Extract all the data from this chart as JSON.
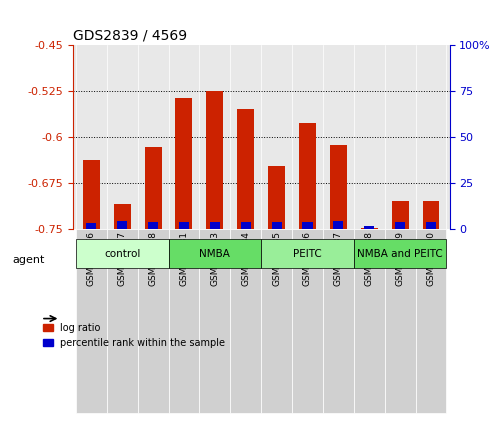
{
  "title": "GDS2839 / 4569",
  "samples": [
    "GSM159376",
    "GSM159377",
    "GSM159378",
    "GSM159381",
    "GSM159383",
    "GSM159384",
    "GSM159385",
    "GSM159386",
    "GSM159387",
    "GSM159388",
    "GSM159389",
    "GSM159390"
  ],
  "log_ratio": [
    -0.638,
    -0.71,
    -0.617,
    -0.537,
    -0.525,
    -0.555,
    -0.648,
    -0.578,
    -0.613,
    -0.748,
    -0.705,
    -0.705
  ],
  "percentile_rank": [
    3.0,
    4.5,
    3.5,
    4.0,
    3.5,
    3.5,
    4.0,
    3.5,
    4.5,
    1.5,
    3.5,
    4.0
  ],
  "ylim_left": [
    -0.75,
    -0.45
  ],
  "ylim_right": [
    0,
    100
  ],
  "yticks_left": [
    -0.75,
    -0.675,
    -0.6,
    -0.525,
    -0.45
  ],
  "yticks_right": [
    0,
    25,
    50,
    75,
    100
  ],
  "groups": [
    {
      "label": "control",
      "start": 0,
      "end": 3,
      "color": "#ccffcc"
    },
    {
      "label": "NMBA",
      "start": 3,
      "end": 6,
      "color": "#66dd66"
    },
    {
      "label": "PEITC",
      "start": 6,
      "end": 9,
      "color": "#99ee99"
    },
    {
      "label": "NMBA and PEITC",
      "start": 9,
      "end": 12,
      "color": "#66dd66"
    }
  ],
  "bar_color_red": "#cc2200",
  "bar_color_blue": "#0000cc",
  "bar_width": 0.55,
  "background_color": "#ffffff",
  "plot_bg_color": "#e8e8e8",
  "grid_color": "#000000",
  "title_color": "#000000",
  "left_axis_color": "#cc2200",
  "right_axis_color": "#0000cc"
}
